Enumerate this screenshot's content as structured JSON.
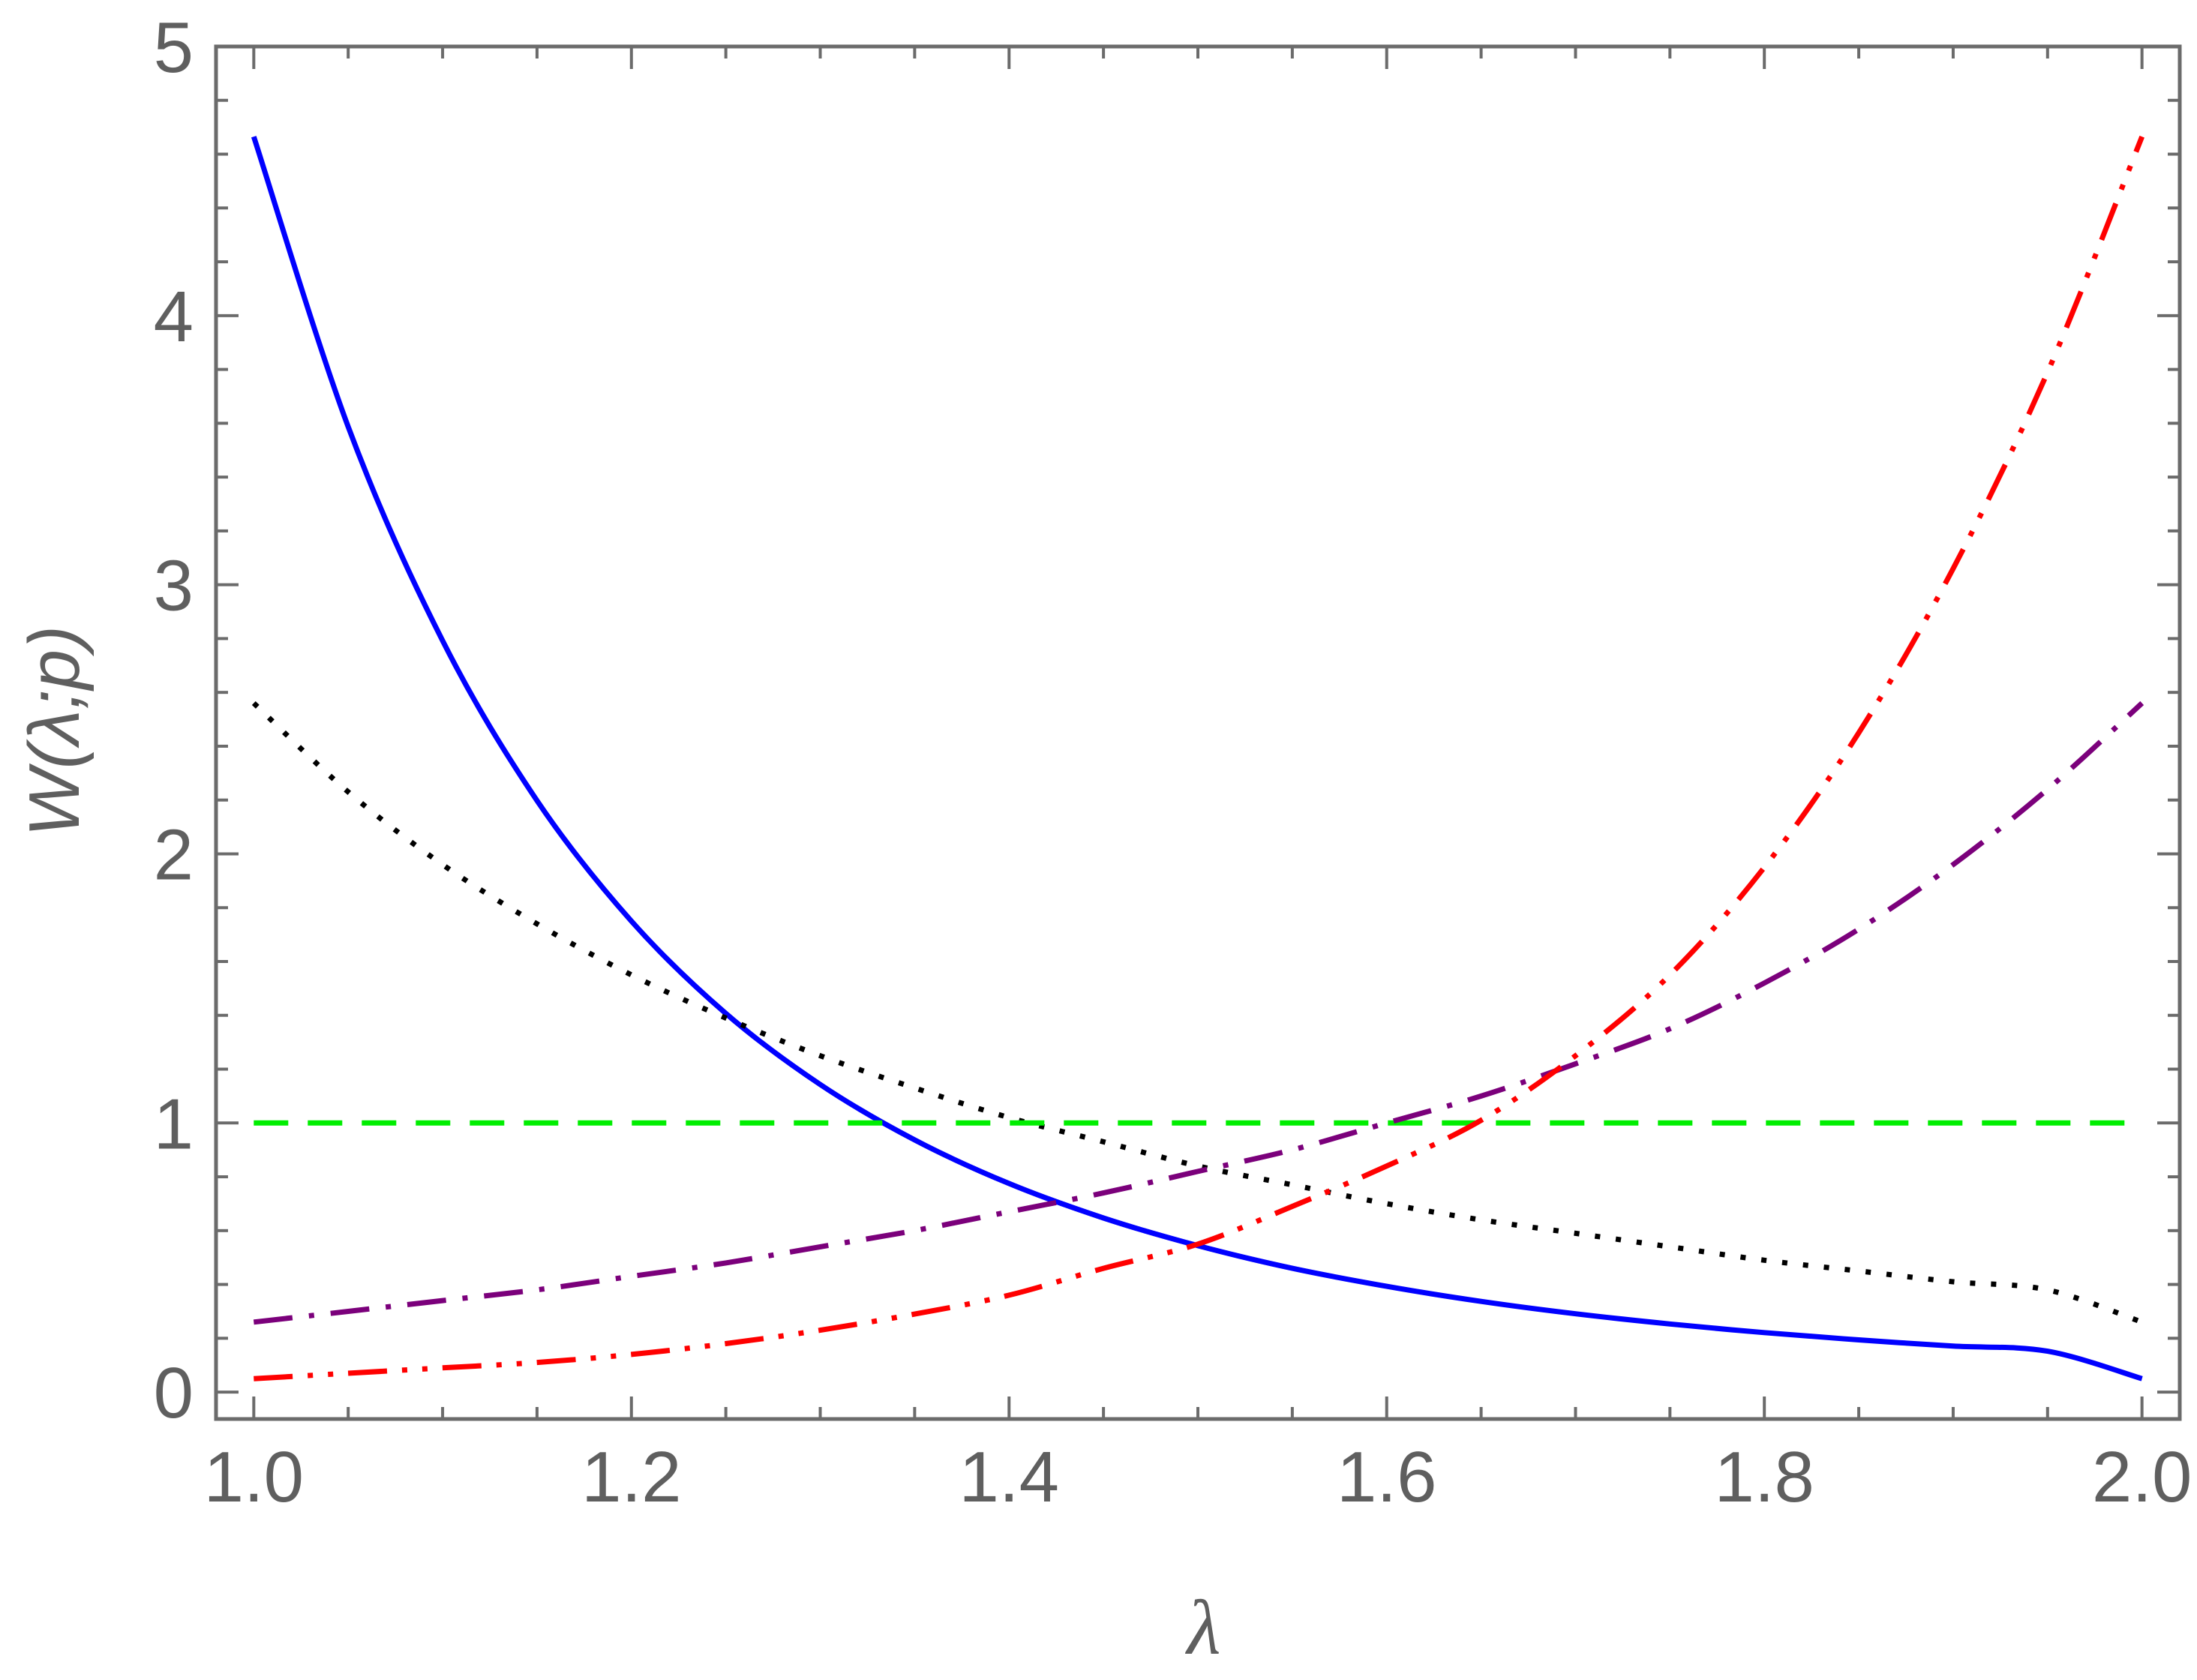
{
  "chart_data": {
    "type": "line",
    "title": "",
    "xlabel": "λ",
    "ylabel": "W(λ;p)",
    "xlim": [
      0.98,
      2.02
    ],
    "ylim": [
      -0.1,
      5.0
    ],
    "x_ticks": [
      "1.0",
      "1.2",
      "1.4",
      "1.6",
      "1.8",
      "2.0"
    ],
    "y_ticks": [
      "0",
      "1",
      "2",
      "3",
      "4",
      "5"
    ],
    "grid": false,
    "legend": "none",
    "series": [
      {
        "style": "solid",
        "color": "#0000ff",
        "x": [
          1.0,
          1.05,
          1.1,
          1.15,
          1.2,
          1.25,
          1.3,
          1.35,
          1.4,
          1.45,
          1.5,
          1.55,
          1.6,
          1.65,
          1.7,
          1.75,
          1.8,
          1.85,
          1.9,
          1.95,
          2.0
        ],
        "y": [
          4.665,
          3.587,
          2.792,
          2.198,
          1.75,
          1.407,
          1.143,
          0.937,
          0.775,
          0.647,
          0.544,
          0.46,
          0.393,
          0.337,
          0.291,
          0.253,
          0.221,
          0.194,
          0.171,
          0.152,
          0.05
        ]
      },
      {
        "style": "dotted",
        "color": "#000000",
        "x": [
          1.0,
          1.05,
          1.1,
          1.15,
          1.2,
          1.25,
          1.3,
          1.35,
          1.4,
          1.45,
          1.5,
          1.55,
          1.6,
          1.65,
          1.7,
          1.75,
          1.8,
          1.85,
          1.9,
          1.95,
          2.0
        ],
        "y": [
          2.56,
          2.23,
          1.96,
          1.74,
          1.55,
          1.39,
          1.25,
          1.13,
          1.02,
          0.93,
          0.84,
          0.77,
          0.7,
          0.64,
          0.59,
          0.54,
          0.49,
          0.45,
          0.41,
          0.38,
          0.26
        ]
      },
      {
        "style": "dashed",
        "color": "#00ee00",
        "x": [
          1.0,
          2.0
        ],
        "y": [
          1.0,
          1.0
        ]
      },
      {
        "style": "dash-dot",
        "color": "#7b007b",
        "x": [
          1.0,
          1.05,
          1.1,
          1.15,
          1.2,
          1.25,
          1.3,
          1.35,
          1.4,
          1.45,
          1.5,
          1.55,
          1.6,
          1.65,
          1.7,
          1.75,
          1.8,
          1.85,
          1.9,
          1.95,
          2.0
        ],
        "y": [
          0.26,
          0.3,
          0.34,
          0.38,
          0.43,
          0.48,
          0.54,
          0.6,
          0.67,
          0.74,
          0.82,
          0.9,
          1.0,
          1.1,
          1.22,
          1.35,
          1.52,
          1.72,
          1.96,
          2.24,
          2.56
        ]
      },
      {
        "style": "dash-dot-dot",
        "color": "#ff0000",
        "x": [
          1.0,
          1.05,
          1.1,
          1.15,
          1.2,
          1.25,
          1.3,
          1.35,
          1.4,
          1.45,
          1.5,
          1.55,
          1.6,
          1.65,
          1.7,
          1.75,
          1.8,
          1.85,
          1.9,
          1.95,
          2.0
        ],
        "y": [
          0.05,
          0.07,
          0.09,
          0.11,
          0.14,
          0.18,
          0.23,
          0.29,
          0.36,
          0.46,
          0.55,
          0.69,
          0.84,
          1.01,
          1.25,
          1.55,
          1.95,
          2.45,
          3.06,
          3.79,
          4.665
        ]
      }
    ]
  }
}
